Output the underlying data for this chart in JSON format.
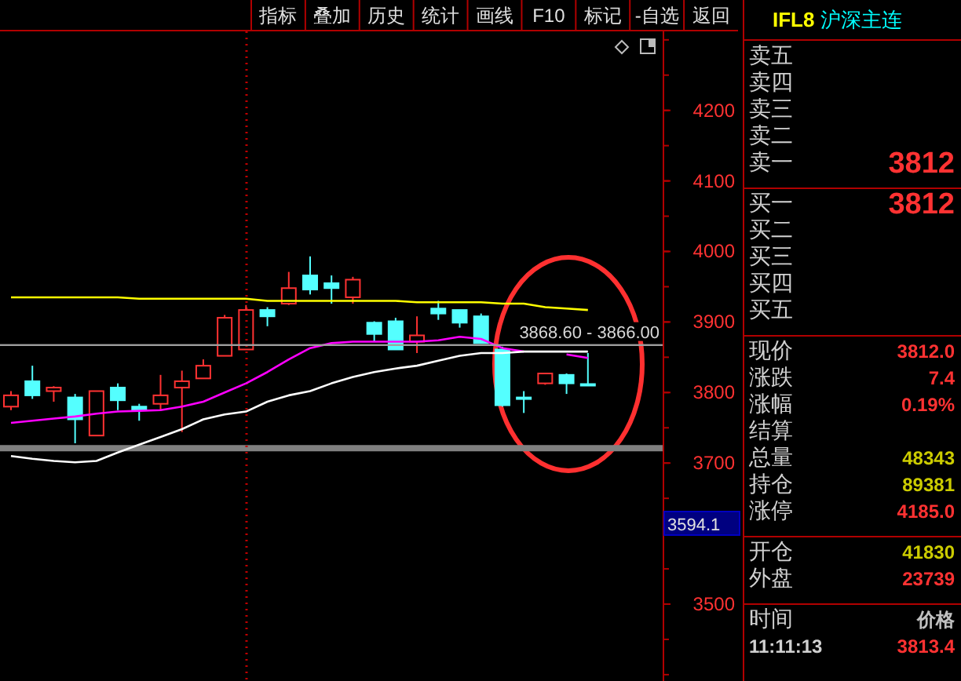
{
  "chart_data": [
    {
      "type": "other",
      "categories": [
        "指标",
        "叠加",
        "历史",
        "统计",
        "画线",
        "F10",
        "标记",
        "-自选",
        "返回"
      ]
    },
    {
      "type": "candlestick",
      "categories": [
        null,
        null,
        null,
        null,
        null,
        null,
        null,
        null,
        null,
        null,
        null,
        null,
        null,
        null,
        null,
        null,
        null,
        null,
        null,
        null,
        null,
        null,
        null,
        null,
        null,
        null,
        null,
        null
      ],
      "ohlc": [
        [
          3780,
          3802,
          3775,
          3796
        ],
        [
          3816,
          3838,
          3791,
          3796
        ],
        [
          3802,
          3809,
          3787,
          3807
        ],
        [
          3793,
          3798,
          3728,
          3762
        ],
        [
          3739,
          3802,
          3739,
          3802
        ],
        [
          3807,
          3813,
          3775,
          3789
        ],
        [
          3780,
          3784,
          3760,
          3775
        ],
        [
          3784,
          3825,
          3775,
          3796
        ],
        [
          3807,
          3831,
          3744,
          3816
        ],
        [
          3820,
          3847,
          3820,
          3838
        ],
        [
          3852,
          3910,
          3852,
          3906
        ],
        [
          3861,
          3924,
          3861,
          3917
        ],
        [
          3917,
          3921,
          3894,
          3908
        ],
        [
          3926,
          3971,
          3924,
          3948
        ],
        [
          3966,
          3993,
          3939,
          3946
        ],
        [
          3955,
          3966,
          3926,
          3948
        ],
        [
          3935,
          3964,
          3926,
          3960
        ],
        [
          3899,
          3901,
          3872,
          3883
        ],
        [
          3901,
          3906,
          3861,
          3861
        ],
        [
          3872,
          3908,
          3856,
          3881
        ],
        [
          3919,
          3930,
          3903,
          3912
        ],
        [
          3917,
          3917,
          3892,
          3899
        ],
        [
          3908,
          3912,
          3870,
          3870
        ],
        [
          3861,
          3865,
          3780,
          3782
        ],
        [
          3793,
          3802,
          3771,
          3793
        ],
        [
          3813,
          3827,
          3811,
          3827
        ],
        [
          3825,
          3827,
          3798,
          3813
        ],
        [
          3812,
          3856,
          3812,
          3812
        ]
      ],
      "series": [
        {
          "type": "line",
          "color": "#ffff00",
          "values": [
            3935,
            3935,
            3935,
            3935,
            3935,
            3935,
            3933,
            3933,
            3933,
            3933,
            3933,
            3933,
            3930,
            3930,
            3930,
            3930,
            3930,
            3930,
            3930,
            3928,
            3928,
            3928,
            3928,
            3926,
            3926,
            3921,
            3919,
            3917
          ]
        },
        {
          "type": "line",
          "color": "#ff00ff",
          "values": [
            3757,
            3760,
            3763,
            3766,
            3770,
            3773,
            3774,
            3775,
            3780,
            3787,
            3800,
            3813,
            3829,
            3847,
            3863,
            3870,
            3872,
            3872,
            3872,
            3872,
            3874,
            3879,
            3876,
            3863,
            3858,
            null,
            3854,
            3849
          ]
        },
        {
          "type": "line",
          "color": "#ffffff",
          "values": [
            3710,
            3706,
            3703,
            3701,
            3703,
            3715,
            3726,
            3737,
            3748,
            3762,
            3769,
            3773,
            3787,
            3796,
            3802,
            3813,
            3822,
            3829,
            3834,
            3838,
            3845,
            3852,
            3856,
            3856,
            3858,
            3858,
            3858,
            3858
          ]
        }
      ],
      "ylim": [
        3391,
        4312
      ],
      "yticks": [
        3500,
        3700,
        3800,
        3900,
        4000,
        4100,
        4200
      ],
      "tick_labels": "y",
      "ref_lines": [
        {
          "axis": "y",
          "value": 3721,
          "color": "#808080"
        }
      ],
      "bands": [
        {
          "axis": "y",
          "from": 3866,
          "to": 3868.6,
          "label": "3868.60 - 3866.00",
          "color": "#a0a0a0"
        }
      ],
      "annotations": [
        "3594.1"
      ]
    },
    {
      "type": "other",
      "title": "IFL8",
      "subtitle": "沪深主连",
      "categories": [
        "卖五",
        "卖四",
        "卖三",
        "卖二",
        "卖一",
        "买一",
        "买二",
        "买三",
        "买四",
        "买五",
        "现价",
        "涨跌",
        "涨幅",
        "结算",
        "总量",
        "持仓",
        "涨停",
        "开仓",
        "外盘",
        "时间",
        "11:11:13"
      ],
      "value_labels": [
        null,
        null,
        null,
        null,
        "3812",
        "3812",
        null,
        null,
        null,
        null,
        "3812.0",
        "7.4",
        "0.19%",
        null,
        "48343",
        "89381",
        "4185.0",
        "41830",
        "23739",
        "价格",
        "3813.4"
      ],
      "colors": [
        null,
        null,
        null,
        null,
        "#ff3232",
        "#ff3232",
        null,
        null,
        null,
        null,
        "#ff3232",
        "#ff3232",
        "#ff3232",
        null,
        "#cccc00",
        "#cccc00",
        "#ff3232",
        "#cccc00",
        "#ff3232",
        "#c0c0c0",
        "#ff3232"
      ]
    }
  ]
}
